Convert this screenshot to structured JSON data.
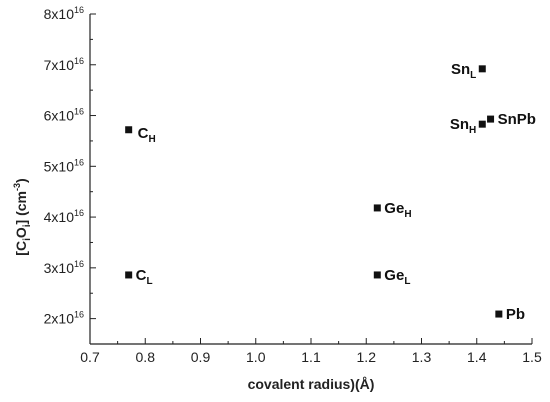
{
  "chart_data": {
    "type": "scatter",
    "xlabel": "covalent radius)(Å)",
    "ylabel": {
      "text_1": "[C",
      "sub_1": "i",
      "text_2": "O",
      "sub_2": "i",
      "text_3": "] (cm",
      "sup": "-3",
      "text_4": ")"
    },
    "xlim": [
      0.7,
      1.5
    ],
    "ylim": [
      1.5e+16,
      8e+16
    ],
    "x_ticks": [
      {
        "value": 0.7,
        "label": "0.7"
      },
      {
        "value": 0.8,
        "label": "0.8"
      },
      {
        "value": 0.9,
        "label": "0.9"
      },
      {
        "value": 1.0,
        "label": "1.0"
      },
      {
        "value": 1.1,
        "label": "1.1"
      },
      {
        "value": 1.2,
        "label": "1.2"
      },
      {
        "value": 1.3,
        "label": "1.3"
      },
      {
        "value": 1.4,
        "label": "1.4"
      },
      {
        "value": 1.5,
        "label": "1.5"
      }
    ],
    "y_ticks": [
      {
        "value": 2e+16,
        "mantissa": "2x10",
        "exponent": "16"
      },
      {
        "value": 3e+16,
        "mantissa": "3x10",
        "exponent": "16"
      },
      {
        "value": 4e+16,
        "mantissa": "4x10",
        "exponent": "16"
      },
      {
        "value": 5e+16,
        "mantissa": "5x10",
        "exponent": "16"
      },
      {
        "value": 6e+16,
        "mantissa": "6x10",
        "exponent": "16"
      },
      {
        "value": 7e+16,
        "mantissa": "7x10",
        "exponent": "16"
      },
      {
        "value": 8e+16,
        "mantissa": "8x10",
        "exponent": "16"
      }
    ],
    "grid": false,
    "legend": "none",
    "marker": "square",
    "marker_color": "#111111",
    "points": [
      {
        "x": 0.77,
        "y": 5.72e+16,
        "label": "C",
        "sub": "H",
        "label_side": "right-below"
      },
      {
        "x": 0.77,
        "y": 2.86e+16,
        "label": "C",
        "sub": "L",
        "label_side": "right"
      },
      {
        "x": 1.22,
        "y": 4.18e+16,
        "label": "Ge",
        "sub": "H",
        "label_side": "right"
      },
      {
        "x": 1.22,
        "y": 2.86e+16,
        "label": "Ge",
        "sub": "L",
        "label_side": "right"
      },
      {
        "x": 1.41,
        "y": 6.92e+16,
        "label": "Sn",
        "sub": "L",
        "label_side": "left"
      },
      {
        "x": 1.41,
        "y": 5.83e+16,
        "label": "Sn",
        "sub": "H",
        "label_side": "left"
      },
      {
        "x": 1.425,
        "y": 5.93e+16,
        "label": "SnPb",
        "sub": "",
        "label_side": "right"
      },
      {
        "x": 1.44,
        "y": 2.09e+16,
        "label": "Pb",
        "sub": "",
        "label_side": "right"
      }
    ]
  }
}
